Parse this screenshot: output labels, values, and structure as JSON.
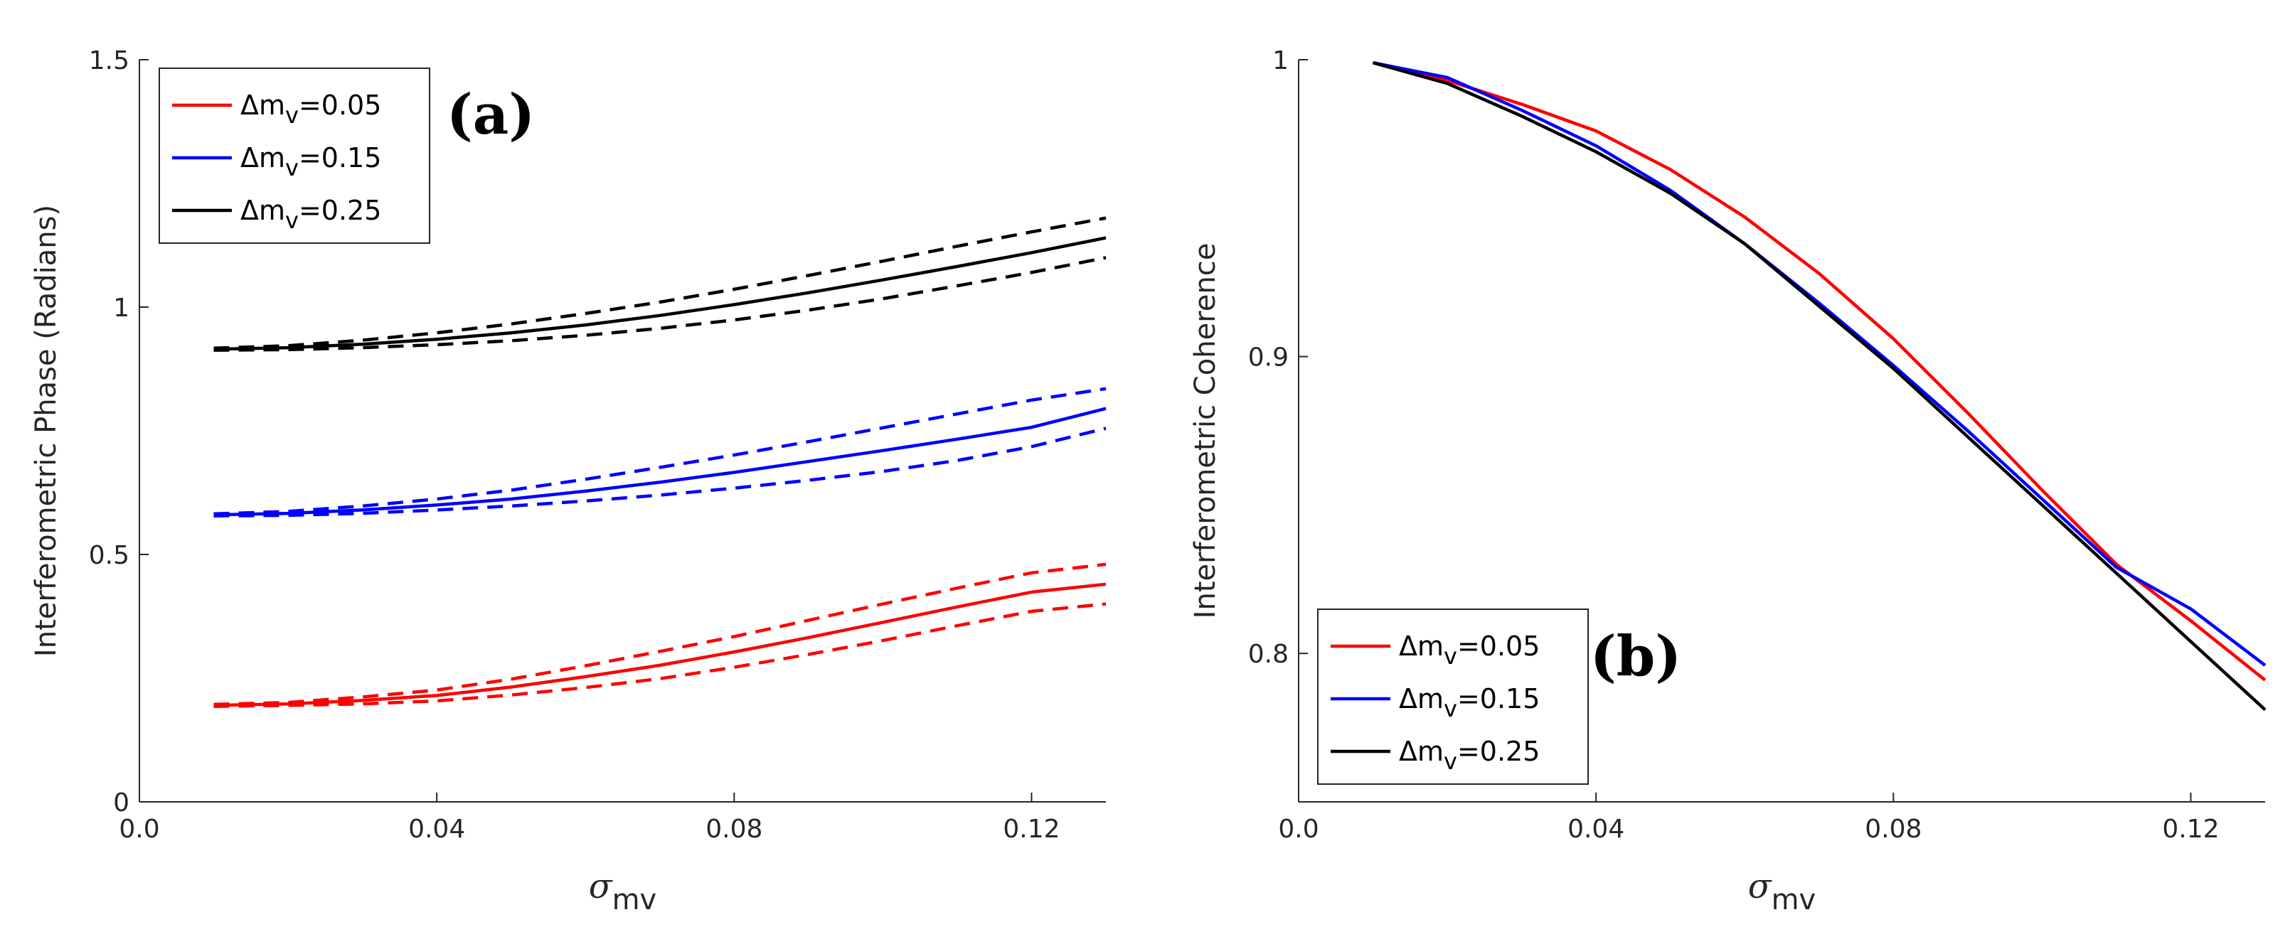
{
  "chart_data": [
    {
      "type": "line",
      "panel_label": "(a)",
      "xlabel": "σ",
      "xlabel_sub": "mv",
      "ylabel": "Interferometric Phase (Radians)",
      "xlim": [
        0,
        0.13
      ],
      "ylim": [
        0,
        1.5
      ],
      "xticks": [
        0,
        0.04,
        0.08,
        0.12
      ],
      "xtick_labels": [
        "0.0",
        "0.04",
        "0.08",
        "0.12"
      ],
      "yticks": [
        0,
        0.5,
        1,
        1.5
      ],
      "ytick_labels": [
        "0",
        "0.5",
        "1",
        "1.5"
      ],
      "legend_position": "top-left",
      "x": [
        0.01,
        0.02,
        0.03,
        0.04,
        0.05,
        0.06,
        0.07,
        0.08,
        0.09,
        0.1,
        0.11,
        0.12,
        0.13
      ],
      "series": [
        {
          "name": "Δm=0.05",
          "legend_prefix": "Δm",
          "legend_sub": "v",
          "legend_value": "=0.05",
          "color": "#ff0000",
          "values": [
            0.195,
            0.198,
            0.205,
            0.215,
            0.232,
            0.253,
            0.276,
            0.303,
            0.332,
            0.363,
            0.394,
            0.424,
            0.44
          ],
          "upper": [
            0.197,
            0.201,
            0.212,
            0.226,
            0.248,
            0.275,
            0.304,
            0.334,
            0.367,
            0.4,
            0.432,
            0.463,
            0.48
          ],
          "lower": [
            0.193,
            0.195,
            0.198,
            0.204,
            0.216,
            0.231,
            0.249,
            0.272,
            0.298,
            0.326,
            0.356,
            0.385,
            0.4
          ]
        },
        {
          "name": "Δm=0.15",
          "legend_prefix": "Δm",
          "legend_sub": "v",
          "legend_value": "=0.15",
          "color": "#0000ff",
          "values": [
            0.58,
            0.583,
            0.59,
            0.6,
            0.612,
            0.628,
            0.646,
            0.666,
            0.688,
            0.71,
            0.733,
            0.757,
            0.795
          ],
          "upper": [
            0.582,
            0.587,
            0.598,
            0.612,
            0.63,
            0.652,
            0.676,
            0.701,
            0.728,
            0.756,
            0.784,
            0.812,
            0.835
          ],
          "lower": [
            0.578,
            0.579,
            0.583,
            0.59,
            0.598,
            0.608,
            0.62,
            0.634,
            0.65,
            0.668,
            0.69,
            0.718,
            0.755
          ]
        },
        {
          "name": "Δm=0.25",
          "legend_prefix": "Δm",
          "legend_sub": "v",
          "legend_value": "=0.25",
          "color": "#000000",
          "values": [
            0.915,
            0.918,
            0.925,
            0.935,
            0.948,
            0.964,
            0.983,
            1.005,
            1.029,
            1.055,
            1.082,
            1.11,
            1.14
          ],
          "upper": [
            0.917,
            0.922,
            0.933,
            0.948,
            0.966,
            0.987,
            1.01,
            1.036,
            1.064,
            1.093,
            1.123,
            1.152,
            1.18
          ],
          "lower": [
            0.913,
            0.914,
            0.918,
            0.924,
            0.932,
            0.943,
            0.957,
            0.974,
            0.994,
            1.017,
            1.043,
            1.07,
            1.1
          ]
        }
      ]
    },
    {
      "type": "line",
      "panel_label": "(b)",
      "xlabel": "σ",
      "xlabel_sub": "mv",
      "ylabel": "Interferometric Coherence",
      "xlim": [
        0,
        0.13
      ],
      "ylim": [
        0.75,
        1.0
      ],
      "xticks": [
        0,
        0.04,
        0.08,
        0.12
      ],
      "xtick_labels": [
        "0.0",
        "0.04",
        "0.08",
        "0.12"
      ],
      "yticks": [
        0.8,
        0.9,
        1.0
      ],
      "ytick_labels": [
        "0.8",
        "0.9",
        "1"
      ],
      "legend_position": "bottom-left",
      "x": [
        0.01,
        0.02,
        0.03,
        0.04,
        0.05,
        0.06,
        0.07,
        0.08,
        0.09,
        0.1,
        0.11,
        0.12,
        0.13
      ],
      "series": [
        {
          "name": "Δm=0.05",
          "legend_prefix": "Δm",
          "legend_sub": "v",
          "legend_value": "=0.05",
          "color": "#ff0000",
          "values": [
            0.999,
            0.993,
            0.985,
            0.976,
            0.963,
            0.947,
            0.928,
            0.906,
            0.881,
            0.855,
            0.83,
            0.811,
            0.791
          ]
        },
        {
          "name": "Δm=0.15",
          "legend_prefix": "Δm",
          "legend_sub": "v",
          "legend_value": "=0.15",
          "color": "#0000ff",
          "values": [
            0.999,
            0.994,
            0.983,
            0.971,
            0.956,
            0.938,
            0.918,
            0.897,
            0.875,
            0.852,
            0.829,
            0.815,
            0.796
          ]
        },
        {
          "name": "Δm=0.25",
          "legend_prefix": "Δm",
          "legend_sub": "v",
          "legend_value": "=0.25",
          "color": "#000000",
          "values": [
            0.999,
            0.992,
            0.981,
            0.969,
            0.955,
            0.938,
            0.917,
            0.896,
            0.873,
            0.85,
            0.827,
            0.804,
            0.781
          ]
        }
      ]
    }
  ]
}
